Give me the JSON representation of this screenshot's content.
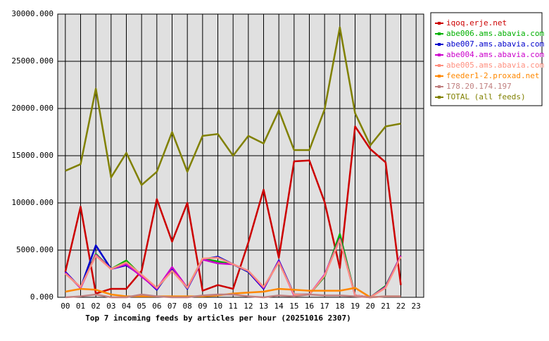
{
  "chart_data": {
    "type": "line",
    "title": "Top 7 incoming feeds by articles per hour (20251016 2307)",
    "categories": [
      "00",
      "01",
      "02",
      "03",
      "04",
      "05",
      "06",
      "07",
      "08",
      "09",
      "10",
      "11",
      "12",
      "13",
      "14",
      "15",
      "16",
      "17",
      "18",
      "19",
      "20",
      "21",
      "22",
      "23"
    ],
    "ylim": [
      0,
      30000
    ],
    "yticks": [
      {
        "value": 0,
        "label": "0.000"
      },
      {
        "value": 5000,
        "label": "5000.000"
      },
      {
        "value": 10000,
        "label": "10000.000"
      },
      {
        "value": 15000,
        "label": "15000.000"
      },
      {
        "value": 20000,
        "label": "20000.000"
      },
      {
        "value": 25000,
        "label": "25000.000"
      },
      {
        "value": 30000,
        "label": "30000.000"
      }
    ],
    "grid": true,
    "legend": "top-right",
    "series": [
      {
        "name": "iqoq.erje.net",
        "color": "#cc0000",
        "values": [
          2700,
          9600,
          400,
          900,
          900,
          2800,
          10400,
          5900,
          10000,
          700,
          1300,
          900,
          5800,
          11400,
          4200,
          14400,
          14500,
          10100,
          3100,
          18100,
          15700,
          14300,
          1300,
          null
        ]
      },
      {
        "name": "abe006.ams.abavia.com",
        "color": "#00b000",
        "values": [
          2600,
          1000,
          4600,
          3000,
          3900,
          2300,
          900,
          2900,
          1000,
          4100,
          3800,
          3500,
          2700,
          1000,
          3800,
          300,
          300,
          2200,
          6700,
          200,
          0,
          1200,
          4400,
          null
        ]
      },
      {
        "name": "abe007.ams.abavia.com",
        "color": "#0000cc",
        "values": [
          2700,
          1000,
          5500,
          3000,
          3400,
          2300,
          800,
          3100,
          900,
          4000,
          4300,
          3500,
          2700,
          900,
          3900,
          300,
          300,
          2300,
          6200,
          200,
          0,
          1100,
          4400,
          null
        ]
      },
      {
        "name": "abe004.ams.abavia.com",
        "color": "#cc00cc",
        "values": [
          2600,
          1000,
          4500,
          3000,
          3500,
          2200,
          900,
          3200,
          1000,
          4000,
          3600,
          3500,
          2800,
          1000,
          3800,
          200,
          300,
          2400,
          6200,
          200,
          0,
          1100,
          4400,
          null
        ]
      },
      {
        "name": "abe005.ams.abavia.com",
        "color": "#ff9080",
        "values": [
          2500,
          1100,
          4400,
          3000,
          3700,
          2400,
          1000,
          2800,
          1000,
          4100,
          4200,
          3500,
          2800,
          1100,
          3700,
          300,
          300,
          2300,
          6100,
          200,
          0,
          1000,
          4300,
          null
        ]
      },
      {
        "name": "feeder1-2.proxad.net",
        "color": "#ff8800",
        "values": [
          600,
          900,
          800,
          300,
          100,
          100,
          100,
          100,
          100,
          100,
          200,
          400,
          500,
          600,
          900,
          800,
          700,
          700,
          700,
          1000,
          0,
          100,
          100,
          null
        ]
      },
      {
        "name": "178.20.174.197",
        "color": "#c08080",
        "values": [
          0,
          100,
          300,
          0,
          0,
          300,
          100,
          0,
          0,
          200,
          300,
          300,
          100,
          0,
          200,
          100,
          300,
          200,
          200,
          100,
          0,
          100,
          100,
          null
        ]
      },
      {
        "name": "TOTAL (all feeds)",
        "color": "#808000",
        "values": [
          13400,
          14100,
          22100,
          12700,
          15300,
          11900,
          13300,
          17500,
          13300,
          17100,
          17300,
          15000,
          17100,
          16300,
          19800,
          15600,
          15600,
          19900,
          28600,
          19500,
          16100,
          18100,
          18400,
          null
        ]
      }
    ]
  }
}
